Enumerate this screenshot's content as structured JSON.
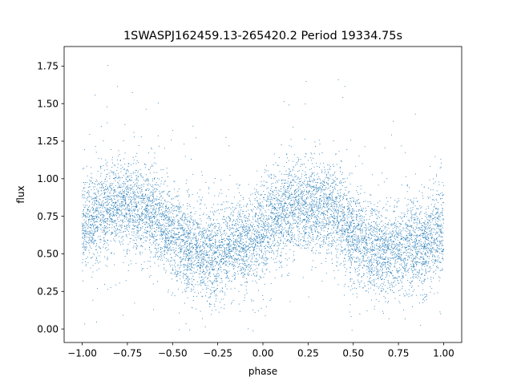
{
  "chart_data": {
    "type": "scatter",
    "title": "1SWASPJ162459.13-265420.2 Period 19334.75s",
    "xlabel": "phase",
    "ylabel": "flux",
    "xlim": [
      -1.1,
      1.1
    ],
    "ylim": [
      -0.09,
      1.88
    ],
    "xticks": [
      -1.0,
      -0.75,
      -0.5,
      -0.25,
      0.0,
      0.25,
      0.5,
      0.75,
      1.0
    ],
    "xtick_labels": [
      "−1.00",
      "−0.75",
      "−0.50",
      "−0.25",
      "0.00",
      "0.25",
      "0.50",
      "0.75",
      "1.00"
    ],
    "yticks": [
      0.0,
      0.25,
      0.5,
      0.75,
      1.0,
      1.25,
      1.5,
      1.75
    ],
    "ytick_labels": [
      "0.00",
      "0.25",
      "0.50",
      "0.75",
      "1.00",
      "1.25",
      "1.50",
      "1.75"
    ],
    "grid": false,
    "legend": "none",
    "series_color": "#1f77b4",
    "phase_range": [
      -1.0,
      1.0
    ],
    "flux_profile": {
      "phase": [
        0.0,
        0.05,
        0.1,
        0.15,
        0.2,
        0.25,
        0.3,
        0.35,
        0.4,
        0.45,
        0.5,
        0.55,
        0.6,
        0.65,
        0.7,
        0.75,
        0.8,
        0.85,
        0.9,
        0.95,
        1.0
      ],
      "median_flux": [
        0.66,
        0.72,
        0.78,
        0.81,
        0.83,
        0.82,
        0.8,
        0.78,
        0.76,
        0.7,
        0.62,
        0.58,
        0.54,
        0.5,
        0.5,
        0.51,
        0.53,
        0.55,
        0.57,
        0.6,
        0.66
      ]
    },
    "scatter_sigma": 0.15,
    "point_count": 9000
  }
}
